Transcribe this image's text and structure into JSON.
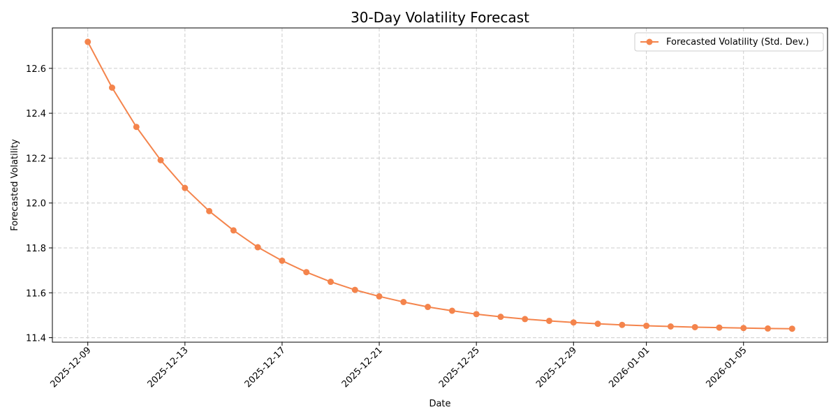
{
  "chart_data": {
    "type": "line",
    "title": "30-Day Volatility Forecast",
    "xlabel": "Date",
    "ylabel": "Forecasted Volatility",
    "x_tick_labels": [
      "2025-12-09",
      "2025-12-13",
      "2025-12-17",
      "2025-12-21",
      "2025-12-25",
      "2025-12-29",
      "2026-01-01",
      "2026-01-05"
    ],
    "y_tick_labels": [
      "11.4",
      "11.6",
      "11.8",
      "12.0",
      "12.2",
      "12.4",
      "12.6"
    ],
    "ylim": [
      11.38,
      12.78
    ],
    "xlim": [
      "2025-12-07T13:00",
      "2026-01-08T11:00"
    ],
    "grid": true,
    "legend_position": "top-right",
    "series": [
      {
        "name": "Forecasted Volatility (Std. Dev.)",
        "color": "#f4844c",
        "x": [
          "2025-12-09",
          "2025-12-10",
          "2025-12-11",
          "2025-12-12",
          "2025-12-13",
          "2025-12-14",
          "2025-12-15",
          "2025-12-16",
          "2025-12-17",
          "2025-12-18",
          "2025-12-19",
          "2025-12-20",
          "2025-12-21",
          "2025-12-22",
          "2025-12-23",
          "2025-12-24",
          "2025-12-25",
          "2025-12-26",
          "2025-12-27",
          "2025-12-28",
          "2025-12-29",
          "2025-12-30",
          "2025-12-31",
          "2026-01-01",
          "2026-01-02",
          "2026-01-03",
          "2026-01-04",
          "2026-01-05",
          "2026-01-06",
          "2026-01-07"
        ],
        "values": [
          12.718,
          12.514,
          12.339,
          12.191,
          12.067,
          11.964,
          11.878,
          11.803,
          11.743,
          11.692,
          11.649,
          11.613,
          11.584,
          11.559,
          11.537,
          11.52,
          11.505,
          11.493,
          11.483,
          11.475,
          11.468,
          11.462,
          11.457,
          11.453,
          11.45,
          11.447,
          11.445,
          11.443,
          11.441,
          11.44
        ]
      }
    ]
  }
}
